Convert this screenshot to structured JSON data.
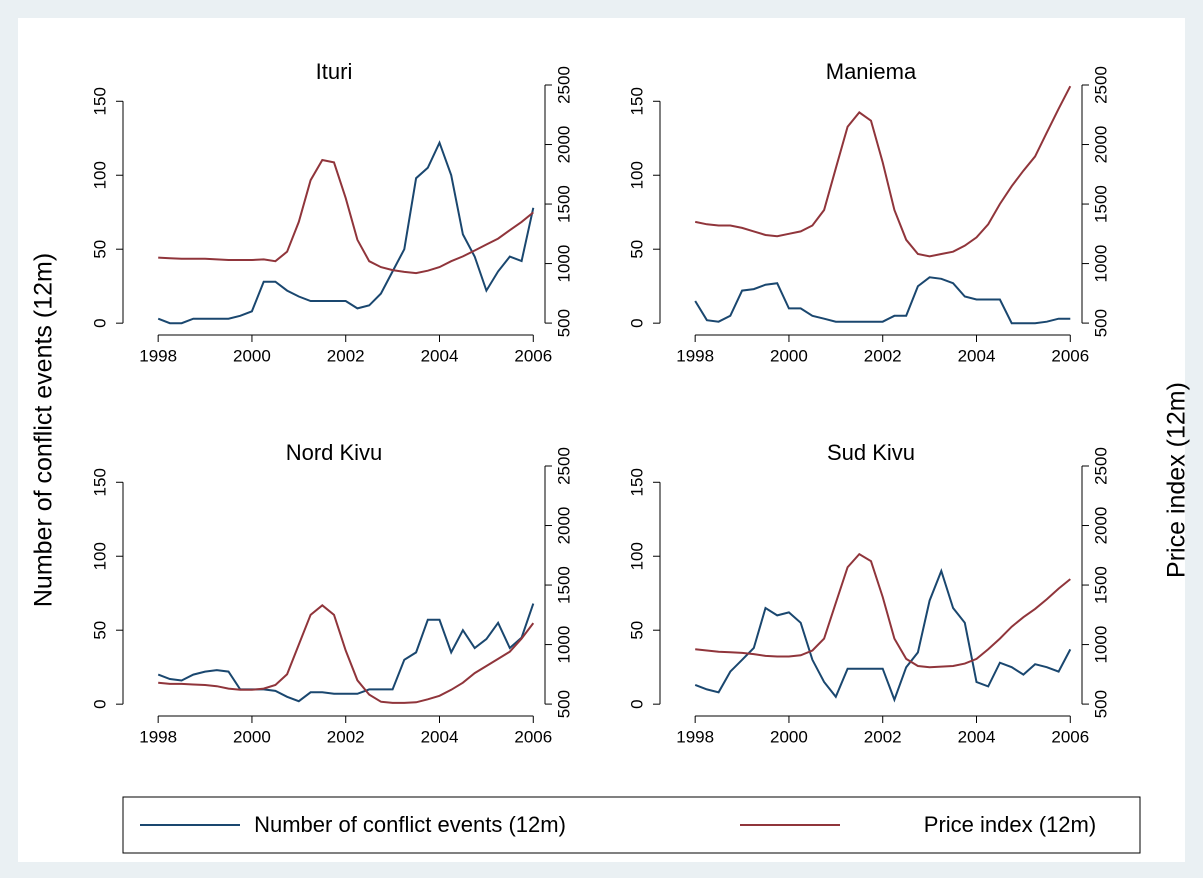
{
  "ylabel": "Number of conflict events (12m)",
  "y2label": "Price index (12m)",
  "legend": "bottom",
  "chart_data": [
    {
      "type": "line",
      "title": "Ituri",
      "x": [
        1998,
        1998.25,
        1998.5,
        1998.75,
        1999,
        1999.25,
        1999.5,
        1999.75,
        2000,
        2000.25,
        2000.5,
        2000.75,
        2001,
        2001.25,
        2001.5,
        2001.75,
        2002,
        2002.25,
        2002.5,
        2002.75,
        2003,
        2003.25,
        2003.5,
        2003.75,
        2004,
        2004.25,
        2004.5,
        2004.75,
        2005,
        2005.25,
        2005.5,
        2005.75,
        2006
      ],
      "series": [
        {
          "name": "Number of conflict events (12m)",
          "color": "#1a476f",
          "values": [
            3,
            0,
            0,
            3,
            3,
            3,
            3,
            5,
            8,
            28,
            28,
            22,
            18,
            15,
            15,
            15,
            15,
            10,
            12,
            20,
            35,
            50,
            98,
            105,
            122,
            100,
            60,
            45,
            22,
            35,
            45,
            42,
            78
          ]
        },
        {
          "name": "Price index (12m)",
          "color": "#90353b",
          "axis": "y2",
          "values": [
            1050,
            1045,
            1040,
            1040,
            1040,
            1035,
            1030,
            1030,
            1030,
            1035,
            1020,
            1100,
            1350,
            1700,
            1870,
            1850,
            1550,
            1200,
            1020,
            970,
            945,
            930,
            920,
            940,
            970,
            1020,
            1060,
            1110,
            1160,
            1210,
            1280,
            1350,
            1430
          ]
        }
      ],
      "xlim": [
        1997.25,
        2006.25
      ],
      "xticks": [
        1998,
        2000,
        2002,
        2004,
        2006
      ],
      "ylim": [
        -8,
        161
      ],
      "yticks": [
        0,
        50,
        100,
        150
      ],
      "y2lim": [
        400,
        2500
      ],
      "y2ticks": [
        500,
        1000,
        1500,
        2000,
        2500
      ]
    },
    {
      "type": "line",
      "title": "Maniema",
      "x": [
        1998,
        1998.25,
        1998.5,
        1998.75,
        1999,
        1999.25,
        1999.5,
        1999.75,
        2000,
        2000.25,
        2000.5,
        2000.75,
        2001,
        2001.25,
        2001.5,
        2001.75,
        2002,
        2002.25,
        2002.5,
        2002.75,
        2003,
        2003.25,
        2003.5,
        2003.75,
        2004,
        2004.25,
        2004.5,
        2004.75,
        2005,
        2005.25,
        2005.5,
        2005.75,
        2006
      ],
      "series": [
        {
          "color": "#1a476f",
          "values": [
            15,
            2,
            1,
            5,
            22,
            23,
            26,
            27,
            10,
            10,
            5,
            3,
            1,
            1,
            1,
            1,
            1,
            5,
            5,
            25,
            31,
            30,
            27,
            18,
            16,
            16,
            16,
            0,
            0,
            0,
            1,
            3,
            3
          ]
        },
        {
          "color": "#90353b",
          "axis": "y2",
          "values": [
            1350,
            1330,
            1320,
            1320,
            1300,
            1270,
            1240,
            1230,
            1250,
            1270,
            1320,
            1450,
            1800,
            2150,
            2270,
            2200,
            1850,
            1450,
            1200,
            1080,
            1060,
            1080,
            1100,
            1150,
            1220,
            1330,
            1500,
            1650,
            1780,
            1900,
            2100,
            2300,
            2490
          ]
        }
      ],
      "xlim": [
        1997.25,
        2006.25
      ],
      "xticks": [
        1998,
        2000,
        2002,
        2004,
        2006
      ],
      "ylim": [
        -8,
        161
      ],
      "yticks": [
        0,
        50,
        100,
        150
      ],
      "y2lim": [
        400,
        2500
      ],
      "y2ticks": [
        500,
        1000,
        1500,
        2000,
        2500
      ]
    },
    {
      "type": "line",
      "title": "Nord Kivu",
      "x": [
        1998,
        1998.25,
        1998.5,
        1998.75,
        1999,
        1999.25,
        1999.5,
        1999.75,
        2000,
        2000.25,
        2000.5,
        2000.75,
        2001,
        2001.25,
        2001.5,
        2001.75,
        2002,
        2002.25,
        2002.5,
        2002.75,
        2003,
        2003.25,
        2003.5,
        2003.75,
        2004,
        2004.25,
        2004.5,
        2004.75,
        2005,
        2005.25,
        2005.5,
        2005.75,
        2006
      ],
      "series": [
        {
          "color": "#1a476f",
          "values": [
            20,
            17,
            16,
            20,
            22,
            23,
            22,
            10,
            10,
            10,
            9,
            5,
            2,
            8,
            8,
            7,
            7,
            7,
            10,
            10,
            10,
            30,
            35,
            57,
            57,
            35,
            50,
            38,
            44,
            55,
            38,
            45,
            68
          ]
        },
        {
          "color": "#90353b",
          "axis": "y2",
          "values": [
            680,
            670,
            670,
            665,
            660,
            650,
            630,
            620,
            620,
            630,
            660,
            750,
            1000,
            1250,
            1330,
            1250,
            950,
            700,
            580,
            520,
            510,
            510,
            515,
            540,
            570,
            620,
            680,
            760,
            820,
            880,
            940,
            1050,
            1180
          ]
        }
      ],
      "xlim": [
        1997.25,
        2006.25
      ],
      "xticks": [
        1998,
        2000,
        2002,
        2004,
        2006
      ],
      "ylim": [
        -8,
        161
      ],
      "yticks": [
        0,
        50,
        100,
        150
      ],
      "y2lim": [
        400,
        2500
      ],
      "y2ticks": [
        500,
        1000,
        1500,
        2000,
        2500
      ]
    },
    {
      "type": "line",
      "title": "Sud Kivu",
      "x": [
        1998,
        1998.25,
        1998.5,
        1998.75,
        1999,
        1999.25,
        1999.5,
        1999.75,
        2000,
        2000.25,
        2000.5,
        2000.75,
        2001,
        2001.25,
        2001.5,
        2001.75,
        2002,
        2002.25,
        2002.5,
        2002.75,
        2003,
        2003.25,
        2003.5,
        2003.75,
        2004,
        2004.25,
        2004.5,
        2004.75,
        2005,
        2005.25,
        2005.5,
        2005.75,
        2006
      ],
      "series": [
        {
          "color": "#1a476f",
          "values": [
            13,
            10,
            8,
            22,
            30,
            38,
            65,
            60,
            62,
            55,
            30,
            15,
            5,
            24,
            24,
            24,
            24,
            3,
            25,
            35,
            70,
            90,
            65,
            55,
            15,
            12,
            28,
            25,
            20,
            27,
            25,
            22,
            37
          ]
        },
        {
          "color": "#90353b",
          "axis": "y2",
          "values": [
            960,
            950,
            940,
            935,
            930,
            920,
            905,
            900,
            900,
            910,
            950,
            1050,
            1350,
            1650,
            1760,
            1700,
            1400,
            1050,
            880,
            820,
            810,
            815,
            820,
            840,
            880,
            960,
            1050,
            1150,
            1230,
            1300,
            1380,
            1470,
            1550
          ]
        }
      ],
      "xlim": [
        1997.25,
        2006.25
      ],
      "xticks": [
        1998,
        2000,
        2002,
        2004,
        2006
      ],
      "ylim": [
        -8,
        161
      ],
      "yticks": [
        0,
        50,
        100,
        150
      ],
      "y2lim": [
        400,
        2500
      ],
      "y2ticks": [
        500,
        1000,
        1500,
        2000,
        2500
      ]
    }
  ]
}
